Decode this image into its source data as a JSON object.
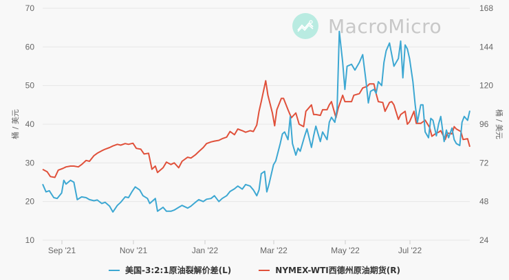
{
  "watermark": {
    "text": "MacroMicro",
    "icon": "chart-line-icon"
  },
  "left_axis": {
    "title": "桶 / 美元",
    "ticks": [
      "70",
      "60",
      "50",
      "40",
      "30",
      "20",
      "10"
    ]
  },
  "right_axis": {
    "title": "桶 / 美元",
    "ticks": [
      "168",
      "144",
      "120",
      "96",
      "72",
      "48",
      "24"
    ]
  },
  "x_axis": {
    "ticks": [
      "Sep '21",
      "Nov '21",
      "Jan '22",
      "Mar '22",
      "May '22",
      "Jul '22"
    ]
  },
  "legend": [
    {
      "label": "美国-3:2:1原油裂解价差(L)",
      "color": "#3ca7d2"
    },
    {
      "label": "NYMEX-WTI西德州原油期货(R)",
      "color": "#e0503a"
    }
  ],
  "chart_data": {
    "type": "line",
    "title": "",
    "xlabel": "",
    "ylabel": "桶 / 美元",
    "ylabel_right": "桶 / 美元",
    "ylim": [
      10,
      70
    ],
    "ylim_right": [
      24,
      168
    ],
    "grid": true,
    "legend_position": "bottom",
    "x_ticks": [
      "Sep '21",
      "Nov '21",
      "Jan '22",
      "Mar '22",
      "May '22",
      "Jul '22"
    ],
    "x_range": [
      "2021-08-20",
      "2022-08-12"
    ],
    "series": [
      {
        "name": "美国-3:2:1原油裂解价差(L)",
        "axis": "left",
        "color": "#3ca7d2",
        "points": [
          [
            "2021-08-20",
            24.5
          ],
          [
            "2021-08-23",
            22.5
          ],
          [
            "2021-08-26",
            22.8
          ],
          [
            "2021-08-30",
            21.0
          ],
          [
            "2021-09-02",
            20.8
          ],
          [
            "2021-09-06",
            22.2
          ],
          [
            "2021-09-08",
            25.5
          ],
          [
            "2021-09-10",
            24.5
          ],
          [
            "2021-09-14",
            25.5
          ],
          [
            "2021-09-17",
            25.0
          ],
          [
            "2021-09-20",
            20.5
          ],
          [
            "2021-09-24",
            21.2
          ],
          [
            "2021-09-28",
            21.0
          ],
          [
            "2021-10-01",
            20.5
          ],
          [
            "2021-10-05",
            20.2
          ],
          [
            "2021-10-08",
            20.4
          ],
          [
            "2021-10-12",
            19.5
          ],
          [
            "2021-10-15",
            19.8
          ],
          [
            "2021-10-19",
            18.8
          ],
          [
            "2021-10-22",
            17.3
          ],
          [
            "2021-10-26",
            19.0
          ],
          [
            "2021-10-29",
            19.8
          ],
          [
            "2021-11-02",
            21.2
          ],
          [
            "2021-11-05",
            21.0
          ],
          [
            "2021-11-08",
            22.5
          ],
          [
            "2021-11-11",
            23.8
          ],
          [
            "2021-11-15",
            23.0
          ],
          [
            "2021-11-18",
            21.5
          ],
          [
            "2021-11-22",
            20.8
          ],
          [
            "2021-11-24",
            19.5
          ],
          [
            "2021-11-29",
            20.8
          ],
          [
            "2021-12-01",
            17.5
          ],
          [
            "2021-12-06",
            18.5
          ],
          [
            "2021-12-09",
            17.5
          ],
          [
            "2021-12-13",
            17.5
          ],
          [
            "2021-12-16",
            17.8
          ],
          [
            "2021-12-20",
            18.5
          ],
          [
            "2021-12-23",
            19.0
          ],
          [
            "2021-12-28",
            18.3
          ],
          [
            "2021-12-31",
            18.8
          ],
          [
            "2022-01-04",
            19.8
          ],
          [
            "2022-01-07",
            20.5
          ],
          [
            "2022-01-11",
            20.0
          ],
          [
            "2022-01-14",
            20.6
          ],
          [
            "2022-01-18",
            20.8
          ],
          [
            "2022-01-21",
            21.5
          ],
          [
            "2022-01-25",
            20.0
          ],
          [
            "2022-01-28",
            20.8
          ],
          [
            "2022-02-01",
            21.5
          ],
          [
            "2022-02-04",
            22.6
          ],
          [
            "2022-02-08",
            23.3
          ],
          [
            "2022-02-11",
            24.0
          ],
          [
            "2022-02-15",
            23.2
          ],
          [
            "2022-02-18",
            24.4
          ],
          [
            "2022-02-22",
            24.0
          ],
          [
            "2022-02-25",
            23.0
          ],
          [
            "2022-02-28",
            21.5
          ],
          [
            "2022-03-02",
            23.0
          ],
          [
            "2022-03-04",
            27.2
          ],
          [
            "2022-03-07",
            27.8
          ],
          [
            "2022-03-09",
            22.5
          ],
          [
            "2022-03-11",
            24.5
          ],
          [
            "2022-03-15",
            29.5
          ],
          [
            "2022-03-17",
            30.5
          ],
          [
            "2022-03-21",
            35.0
          ],
          [
            "2022-03-23",
            37.5
          ],
          [
            "2022-03-25",
            38.0
          ],
          [
            "2022-03-28",
            36.0
          ],
          [
            "2022-03-30",
            42.0
          ],
          [
            "2022-04-01",
            35.0
          ],
          [
            "2022-04-04",
            32.0
          ],
          [
            "2022-04-06",
            33.8
          ],
          [
            "2022-04-08",
            33.0
          ],
          [
            "2022-04-12",
            37.0
          ],
          [
            "2022-04-14",
            38.8
          ],
          [
            "2022-04-18",
            34.0
          ],
          [
            "2022-04-20",
            37.0
          ],
          [
            "2022-04-22",
            39.5
          ],
          [
            "2022-04-26",
            35.5
          ],
          [
            "2022-04-28",
            38.0
          ],
          [
            "2022-05-02",
            36.0
          ],
          [
            "2022-05-04",
            40.5
          ],
          [
            "2022-05-06",
            41.8
          ],
          [
            "2022-05-09",
            40.5
          ],
          [
            "2022-05-11",
            44.0
          ],
          [
            "2022-05-13",
            64.0
          ],
          [
            "2022-05-16",
            56.0
          ],
          [
            "2022-05-18",
            49.0
          ],
          [
            "2022-05-20",
            55.0
          ],
          [
            "2022-05-24",
            55.5
          ],
          [
            "2022-05-27",
            54.0
          ],
          [
            "2022-05-31",
            56.0
          ],
          [
            "2022-06-03",
            58.0
          ],
          [
            "2022-06-06",
            51.0
          ],
          [
            "2022-06-08",
            45.5
          ],
          [
            "2022-06-10",
            48.5
          ],
          [
            "2022-06-13",
            49.0
          ],
          [
            "2022-06-15",
            48.0
          ],
          [
            "2022-06-17",
            51.0
          ],
          [
            "2022-06-20",
            50.0
          ],
          [
            "2022-06-22",
            56.0
          ],
          [
            "2022-06-24",
            59.0
          ],
          [
            "2022-06-27",
            61.0
          ],
          [
            "2022-06-29",
            58.0
          ],
          [
            "2022-07-01",
            55.0
          ],
          [
            "2022-07-05",
            57.0
          ],
          [
            "2022-07-07",
            61.5
          ],
          [
            "2022-07-09",
            52.0
          ],
          [
            "2022-07-11",
            60.5
          ],
          [
            "2022-07-13",
            59.5
          ],
          [
            "2022-07-15",
            57.0
          ],
          [
            "2022-07-18",
            51.0
          ],
          [
            "2022-07-20",
            45.0
          ],
          [
            "2022-07-22",
            40.5
          ],
          [
            "2022-07-25",
            45.0
          ],
          [
            "2022-07-27",
            45.0
          ],
          [
            "2022-07-29",
            38.0
          ],
          [
            "2022-08-01",
            36.5
          ],
          [
            "2022-08-03",
            41.5
          ],
          [
            "2022-08-05",
            41.0
          ],
          [
            "2022-08-08",
            37.0
          ],
          [
            "2022-08-10",
            40.0
          ],
          [
            "2022-08-12",
            42.0
          ],
          [
            "2022-08-15",
            35.5
          ],
          [
            "2022-08-17",
            38.5
          ],
          [
            "2022-08-19",
            36.5
          ],
          [
            "2022-08-22",
            39.0
          ],
          [
            "2022-08-24",
            36.0
          ],
          [
            "2022-08-26",
            35.0
          ],
          [
            "2022-08-29",
            34.5
          ],
          [
            "2022-08-31",
            40.5
          ],
          [
            "2022-09-02",
            42.0
          ],
          [
            "2022-09-05",
            41.0
          ],
          [
            "2022-09-07",
            43.5
          ]
        ]
      },
      {
        "name": "NYMEX-WTI西德州原油期货(R)",
        "axis": "right",
        "color": "#e0503a",
        "points": [
          [
            "2021-08-20",
            68.0
          ],
          [
            "2021-08-24",
            66.5
          ],
          [
            "2021-08-27",
            63.5
          ],
          [
            "2021-08-31",
            63.0
          ],
          [
            "2021-09-03",
            67.5
          ],
          [
            "2021-09-07",
            68.5
          ],
          [
            "2021-09-10",
            69.5
          ],
          [
            "2021-09-14",
            70.0
          ],
          [
            "2021-09-17",
            70.0
          ],
          [
            "2021-09-21",
            69.5
          ],
          [
            "2021-09-24",
            71.0
          ],
          [
            "2021-09-28",
            73.5
          ],
          [
            "2021-10-01",
            73.0
          ],
          [
            "2021-10-05",
            76.5
          ],
          [
            "2021-10-08",
            78.0
          ],
          [
            "2021-10-12",
            79.5
          ],
          [
            "2021-10-15",
            80.5
          ],
          [
            "2021-10-19",
            81.5
          ],
          [
            "2021-10-22",
            82.5
          ],
          [
            "2021-10-26",
            83.5
          ],
          [
            "2021-10-29",
            83.0
          ],
          [
            "2021-11-02",
            84.0
          ],
          [
            "2021-11-05",
            83.5
          ],
          [
            "2021-11-09",
            84.2
          ],
          [
            "2021-11-12",
            81.0
          ],
          [
            "2021-11-16",
            80.5
          ],
          [
            "2021-11-19",
            77.5
          ],
          [
            "2021-11-23",
            78.0
          ],
          [
            "2021-11-26",
            68.0
          ],
          [
            "2021-11-29",
            70.0
          ],
          [
            "2021-12-01",
            66.0
          ],
          [
            "2021-12-06",
            69.0
          ],
          [
            "2021-12-09",
            72.5
          ],
          [
            "2021-12-13",
            71.0
          ],
          [
            "2021-12-16",
            72.0
          ],
          [
            "2021-12-20",
            69.0
          ],
          [
            "2021-12-23",
            73.0
          ],
          [
            "2021-12-28",
            75.5
          ],
          [
            "2021-12-31",
            75.0
          ],
          [
            "2022-01-04",
            77.0
          ],
          [
            "2022-01-07",
            79.0
          ],
          [
            "2022-01-11",
            81.5
          ],
          [
            "2022-01-14",
            84.0
          ],
          [
            "2022-01-18",
            85.0
          ],
          [
            "2022-01-21",
            85.5
          ],
          [
            "2022-01-25",
            86.0
          ],
          [
            "2022-01-28",
            87.0
          ],
          [
            "2022-02-01",
            88.0
          ],
          [
            "2022-02-04",
            91.5
          ],
          [
            "2022-02-08",
            89.5
          ],
          [
            "2022-02-11",
            93.0
          ],
          [
            "2022-02-15",
            92.0
          ],
          [
            "2022-02-18",
            91.0
          ],
          [
            "2022-02-22",
            92.0
          ],
          [
            "2022-02-25",
            91.5
          ],
          [
            "2022-02-28",
            95.5
          ],
          [
            "2022-03-02",
            104.0
          ],
          [
            "2022-03-04",
            110.0
          ],
          [
            "2022-03-08",
            123.0
          ],
          [
            "2022-03-10",
            114.0
          ],
          [
            "2022-03-14",
            103.0
          ],
          [
            "2022-03-16",
            95.0
          ],
          [
            "2022-03-18",
            105.0
          ],
          [
            "2022-03-22",
            112.0
          ],
          [
            "2022-03-24",
            112.0
          ],
          [
            "2022-03-28",
            105.0
          ],
          [
            "2022-03-31",
            100.0
          ],
          [
            "2022-04-04",
            103.0
          ],
          [
            "2022-04-07",
            96.0
          ],
          [
            "2022-04-11",
            94.5
          ],
          [
            "2022-04-13",
            104.0
          ],
          [
            "2022-04-18",
            108.0
          ],
          [
            "2022-04-20",
            102.0
          ],
          [
            "2022-04-22",
            102.0
          ],
          [
            "2022-04-26",
            101.5
          ],
          [
            "2022-04-28",
            105.0
          ],
          [
            "2022-05-02",
            105.0
          ],
          [
            "2022-05-04",
            108.0
          ],
          [
            "2022-05-06",
            110.0
          ],
          [
            "2022-05-10",
            100.0
          ],
          [
            "2022-05-12",
            106.0
          ],
          [
            "2022-05-16",
            114.0
          ],
          [
            "2022-05-18",
            110.0
          ],
          [
            "2022-05-20",
            110.0
          ],
          [
            "2022-05-24",
            110.0
          ],
          [
            "2022-05-26",
            114.0
          ],
          [
            "2022-05-31",
            115.0
          ],
          [
            "2022-06-03",
            118.5
          ],
          [
            "2022-06-07",
            119.5
          ],
          [
            "2022-06-09",
            121.0
          ],
          [
            "2022-06-13",
            121.0
          ],
          [
            "2022-06-15",
            115.0
          ],
          [
            "2022-06-17",
            110.0
          ],
          [
            "2022-06-21",
            109.5
          ],
          [
            "2022-06-23",
            104.0
          ],
          [
            "2022-06-27",
            109.5
          ],
          [
            "2022-06-29",
            110.0
          ],
          [
            "2022-07-01",
            108.0
          ],
          [
            "2022-07-05",
            99.0
          ],
          [
            "2022-07-07",
            102.0
          ],
          [
            "2022-07-11",
            104.0
          ],
          [
            "2022-07-13",
            96.0
          ],
          [
            "2022-07-15",
            97.5
          ],
          [
            "2022-07-19",
            104.0
          ],
          [
            "2022-07-21",
            96.5
          ],
          [
            "2022-07-25",
            96.5
          ],
          [
            "2022-07-27",
            97.5
          ],
          [
            "2022-07-29",
            98.5
          ],
          [
            "2022-08-02",
            94.0
          ],
          [
            "2022-08-04",
            88.5
          ],
          [
            "2022-08-08",
            90.5
          ],
          [
            "2022-08-10",
            91.0
          ],
          [
            "2022-08-12",
            92.0
          ],
          [
            "2022-08-16",
            86.5
          ],
          [
            "2022-08-18",
            90.5
          ],
          [
            "2022-08-22",
            90.0
          ],
          [
            "2022-08-24",
            94.5
          ],
          [
            "2022-08-26",
            93.0
          ],
          [
            "2022-08-30",
            91.5
          ],
          [
            "2022-09-01",
            86.5
          ],
          [
            "2022-09-05",
            87.0
          ],
          [
            "2022-09-07",
            82.0
          ]
        ]
      }
    ]
  }
}
